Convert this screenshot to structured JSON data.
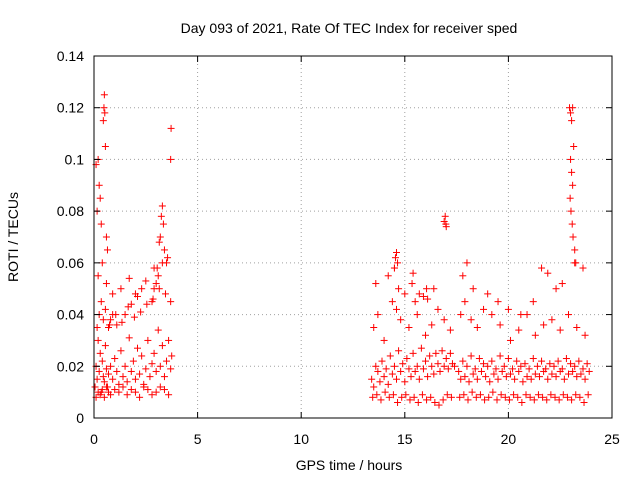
{
  "chart_data": {
    "type": "scatter",
    "title": "Day 093 of 2021, Rate Of TEC Index for receiver sped",
    "xlabel": "GPS time / hours",
    "ylabel": "ROTI / TECUs",
    "xlim": [
      0,
      25
    ],
    "ylim": [
      0,
      0.14
    ],
    "xticks": [
      0,
      5,
      10,
      15,
      20,
      25
    ],
    "xtick_labels": [
      "0",
      "5",
      "10",
      "15",
      "20",
      "25"
    ],
    "yticks": [
      0,
      0.02,
      0.04,
      0.06,
      0.08,
      0.1,
      0.12,
      0.14
    ],
    "ytick_labels": [
      "0",
      "0.02",
      "0.04",
      "0.06",
      "0.08",
      "0.1",
      "0.12",
      "0.14"
    ],
    "grid": true,
    "marker": "plus",
    "color": "#ff0000",
    "series": [
      {
        "x": [
          0.05,
          0.1,
          0.15,
          0.2,
          0.25,
          0.3,
          0.35,
          0.4,
          0.45,
          0.5,
          0.55,
          0.6,
          0.65,
          0.7,
          0.8,
          0.9,
          1.0,
          1.1,
          1.2,
          1.3,
          1.4,
          1.5,
          1.6,
          1.7,
          1.8,
          1.9,
          2.0,
          2.1,
          2.2,
          2.3,
          2.4,
          2.5,
          2.6,
          2.7,
          2.8,
          2.9,
          3.0,
          3.1,
          3.2,
          3.3,
          3.4,
          3.5,
          3.6,
          3.7,
          3.75,
          0.1,
          0.2,
          0.3,
          0.4,
          0.5,
          0.6,
          0.7,
          0.8,
          1.0,
          1.2,
          1.4,
          1.6,
          1.8,
          2.0,
          2.2,
          2.4,
          2.6,
          2.8,
          3.0,
          3.2,
          3.4,
          3.6,
          0.15,
          0.25,
          0.35,
          0.45,
          0.55,
          0.75,
          1.05,
          1.35,
          1.65,
          1.95,
          2.25,
          2.55,
          2.85,
          3.15,
          3.45,
          3.7,
          0.2,
          0.4,
          0.6,
          0.9,
          1.3,
          1.7,
          2.1,
          2.5,
          2.9,
          3.3,
          3.55,
          0.48,
          0.5,
          0.52,
          0.45,
          0.55,
          0.2,
          0.25,
          0.3,
          0.35,
          0.6,
          0.65,
          0.1,
          0.15,
          3.25,
          3.3,
          3.35,
          3.2,
          3.15,
          3.4,
          3.5,
          3.7,
          3.72,
          3.1,
          3.05,
          2.9,
          2.8,
          3.0,
          1.5,
          1.8,
          2.0,
          2.3,
          0.7,
          0.8,
          0.9,
          1.1
        ],
        "y": [
          0.012,
          0.02,
          0.015,
          0.03,
          0.018,
          0.025,
          0.01,
          0.022,
          0.016,
          0.014,
          0.028,
          0.019,
          0.012,
          0.017,
          0.02,
          0.015,
          0.023,
          0.018,
          0.013,
          0.026,
          0.016,
          0.02,
          0.014,
          0.031,
          0.018,
          0.022,
          0.015,
          0.027,
          0.017,
          0.024,
          0.013,
          0.019,
          0.03,
          0.016,
          0.021,
          0.025,
          0.018,
          0.034,
          0.02,
          0.028,
          0.016,
          0.022,
          0.03,
          0.019,
          0.024,
          0.008,
          0.01,
          0.009,
          0.011,
          0.008,
          0.012,
          0.01,
          0.009,
          0.011,
          0.01,
          0.012,
          0.009,
          0.011,
          0.01,
          0.008,
          0.012,
          0.011,
          0.009,
          0.01,
          0.012,
          0.011,
          0.009,
          0.035,
          0.04,
          0.045,
          0.038,
          0.042,
          0.036,
          0.04,
          0.037,
          0.043,
          0.039,
          0.041,
          0.044,
          0.046,
          0.05,
          0.048,
          0.045,
          0.055,
          0.06,
          0.052,
          0.048,
          0.05,
          0.054,
          0.047,
          0.053,
          0.058,
          0.06,
          0.062,
          0.12,
          0.125,
          0.118,
          0.115,
          0.105,
          0.1,
          0.09,
          0.085,
          0.075,
          0.07,
          0.065,
          0.098,
          0.08,
          0.078,
          0.082,
          0.075,
          0.07,
          0.068,
          0.065,
          0.06,
          0.1,
          0.112,
          0.055,
          0.058,
          0.05,
          0.045,
          0.052,
          0.04,
          0.044,
          0.048,
          0.05,
          0.035,
          0.038,
          0.04,
          0.036
        ]
      },
      {
        "x": [
          13.4,
          13.5,
          13.6,
          13.7,
          13.8,
          13.9,
          14.0,
          14.1,
          14.2,
          14.3,
          14.4,
          14.5,
          14.6,
          14.7,
          14.8,
          14.9,
          15.0,
          15.1,
          15.2,
          15.3,
          15.4,
          15.5,
          15.6,
          15.7,
          15.8,
          15.9,
          16.0,
          16.1,
          16.2,
          16.3,
          16.4,
          16.5,
          16.6,
          16.7,
          16.8,
          16.9,
          17.0,
          17.1,
          17.2,
          17.3,
          17.4,
          13.45,
          13.65,
          13.85,
          14.05,
          14.25,
          14.45,
          14.65,
          14.85,
          15.05,
          15.25,
          15.45,
          15.65,
          15.85,
          16.05,
          16.25,
          16.45,
          16.65,
          16.85,
          17.05,
          17.25,
          13.5,
          13.7,
          14.0,
          14.4,
          14.6,
          14.8,
          15.2,
          15.6,
          16.0,
          16.3,
          16.6,
          16.9,
          17.2,
          13.6,
          14.2,
          14.5,
          14.7,
          15.0,
          15.5,
          15.9,
          16.4,
          16.95,
          16.98,
          16.9,
          17.0,
          14.55,
          14.6,
          14.65,
          14.5,
          15.35,
          15.4,
          15.7,
          16.05,
          16.1
        ],
        "y": [
          0.015,
          0.012,
          0.02,
          0.018,
          0.014,
          0.022,
          0.016,
          0.019,
          0.013,
          0.024,
          0.017,
          0.02,
          0.015,
          0.026,
          0.018,
          0.021,
          0.014,
          0.023,
          0.019,
          0.016,
          0.025,
          0.018,
          0.02,
          0.015,
          0.027,
          0.019,
          0.022,
          0.016,
          0.024,
          0.02,
          0.017,
          0.025,
          0.021,
          0.018,
          0.026,
          0.02,
          0.023,
          0.019,
          0.025,
          0.021,
          0.02,
          0.008,
          0.009,
          0.007,
          0.01,
          0.008,
          0.009,
          0.006,
          0.008,
          0.009,
          0.007,
          0.008,
          0.006,
          0.009,
          0.007,
          0.008,
          0.006,
          0.005,
          0.007,
          0.009,
          0.008,
          0.035,
          0.04,
          0.03,
          0.045,
          0.042,
          0.038,
          0.035,
          0.04,
          0.032,
          0.036,
          0.042,
          0.038,
          0.034,
          0.052,
          0.055,
          0.058,
          0.05,
          0.048,
          0.045,
          0.047,
          0.05,
          0.078,
          0.075,
          0.076,
          0.074,
          0.062,
          0.064,
          0.06,
          0.058,
          0.052,
          0.056,
          0.048,
          0.05,
          0.046
        ]
      },
      {
        "x": [
          17.6,
          17.7,
          17.8,
          17.9,
          18.0,
          18.1,
          18.2,
          18.3,
          18.4,
          18.5,
          18.6,
          18.7,
          18.8,
          18.9,
          19.0,
          19.1,
          19.2,
          19.3,
          19.4,
          19.5,
          19.6,
          19.7,
          19.8,
          19.9,
          20.0,
          20.1,
          20.2,
          20.3,
          20.4,
          20.5,
          20.6,
          20.7,
          20.8,
          20.9,
          21.0,
          21.1,
          21.2,
          21.3,
          21.4,
          21.5,
          21.6,
          21.7,
          21.8,
          21.9,
          22.0,
          22.1,
          22.2,
          22.3,
          22.4,
          22.5,
          22.6,
          22.7,
          22.8,
          22.9,
          23.0,
          23.1,
          23.2,
          23.3,
          23.4,
          23.5,
          23.6,
          23.7,
          23.8,
          23.9,
          17.65,
          17.85,
          18.05,
          18.25,
          18.45,
          18.65,
          18.85,
          19.05,
          19.25,
          19.45,
          19.65,
          19.85,
          20.05,
          20.25,
          20.45,
          20.65,
          20.85,
          21.05,
          21.25,
          21.45,
          21.65,
          21.85,
          22.05,
          22.25,
          22.45,
          22.65,
          22.85,
          23.05,
          23.25,
          23.45,
          23.65,
          23.85,
          17.7,
          17.9,
          18.2,
          18.5,
          18.8,
          19.2,
          19.6,
          20.1,
          20.5,
          20.9,
          21.3,
          21.7,
          22.1,
          22.5,
          22.9,
          23.3,
          23.7,
          17.8,
          18.0,
          18.3,
          19.0,
          19.5,
          20.0,
          20.6,
          21.2,
          21.6,
          21.9,
          22.3,
          22.6,
          23.2,
          23.6,
          22.95,
          23.0,
          23.05,
          23.1,
          23.15,
          23.0,
          23.05,
          23.1,
          22.98,
          23.02,
          23.08,
          23.12,
          23.2,
          23.25
        ],
        "y": [
          0.018,
          0.015,
          0.022,
          0.016,
          0.02,
          0.014,
          0.024,
          0.017,
          0.019,
          0.015,
          0.023,
          0.018,
          0.021,
          0.016,
          0.02,
          0.014,
          0.022,
          0.017,
          0.019,
          0.015,
          0.024,
          0.018,
          0.02,
          0.016,
          0.023,
          0.017,
          0.019,
          0.015,
          0.022,
          0.018,
          0.02,
          0.014,
          0.021,
          0.016,
          0.019,
          0.015,
          0.023,
          0.017,
          0.02,
          0.016,
          0.022,
          0.018,
          0.019,
          0.015,
          0.021,
          0.017,
          0.02,
          0.016,
          0.022,
          0.018,
          0.019,
          0.015,
          0.023,
          0.017,
          0.021,
          0.018,
          0.02,
          0.016,
          0.022,
          0.017,
          0.019,
          0.015,
          0.021,
          0.018,
          0.008,
          0.009,
          0.007,
          0.01,
          0.008,
          0.009,
          0.007,
          0.008,
          0.01,
          0.007,
          0.009,
          0.008,
          0.007,
          0.009,
          0.008,
          0.006,
          0.009,
          0.008,
          0.007,
          0.009,
          0.008,
          0.007,
          0.009,
          0.008,
          0.007,
          0.009,
          0.008,
          0.007,
          0.009,
          0.008,
          0.006,
          0.009,
          0.04,
          0.045,
          0.038,
          0.035,
          0.042,
          0.04,
          0.036,
          0.03,
          0.034,
          0.04,
          0.032,
          0.036,
          0.038,
          0.034,
          0.04,
          0.035,
          0.032,
          0.055,
          0.06,
          0.05,
          0.048,
          0.045,
          0.042,
          0.04,
          0.045,
          0.058,
          0.056,
          0.05,
          0.052,
          0.06,
          0.058,
          0.12,
          0.118,
          0.115,
          0.12,
          0.105,
          0.1,
          0.095,
          0.09,
          0.085,
          0.08,
          0.075,
          0.07,
          0.065,
          0.06
        ]
      }
    ]
  }
}
